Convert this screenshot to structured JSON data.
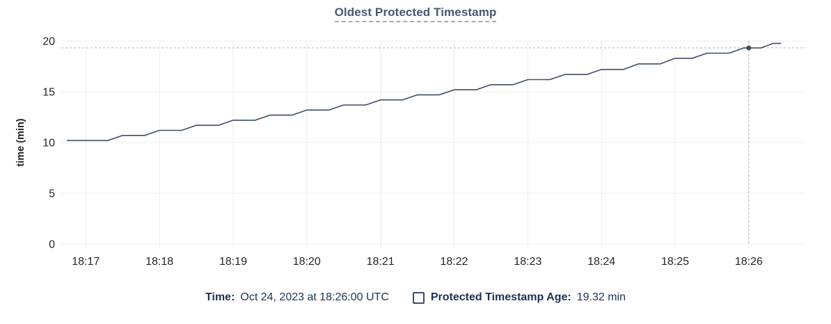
{
  "chart": {
    "title": "Oldest Protected Timestamp",
    "ylabel": "time (min)"
  },
  "legend": {
    "time_label": "Time:",
    "time_value": "Oct 24, 2023 at 18:26:00 UTC",
    "series_label": "Protected Timestamp Age:",
    "series_value": "19.32 min"
  },
  "colors": {
    "series_line": "#3e4c63",
    "highlight_dot": "#3e4c63",
    "crosshair": "#9fb6c3",
    "grid": "#ececec",
    "tick_text": "#242424",
    "axis_title_text": "#242424",
    "title_text": "#475872",
    "title_underline": "#9fabbd",
    "legend_text": "#1b3254",
    "checkbox_border": "#3e5066",
    "background": "#ffffff"
  },
  "chart_data": {
    "type": "line",
    "title": "Oldest Protected Timestamp",
    "xlabel": "",
    "ylabel": "time (min)",
    "ylim": [
      0,
      20
    ],
    "y_ticks": [
      0,
      5,
      10,
      15,
      20
    ],
    "x_ticks": [
      "18:17",
      "18:18",
      "18:19",
      "18:20",
      "18:21",
      "18:22",
      "18:23",
      "18:24",
      "18:25",
      "18:26"
    ],
    "x_domain": [
      "18:16:40",
      "18:26:46"
    ],
    "grid": true,
    "legend_position": "bottom",
    "series": [
      {
        "name": "Protected Timestamp Age",
        "unit": "min",
        "points": [
          [
            "18:16:45",
            10.2
          ],
          [
            "18:17:18",
            10.2
          ],
          [
            "18:17:30",
            10.7
          ],
          [
            "18:17:48",
            10.7
          ],
          [
            "18:18:00",
            11.2
          ],
          [
            "18:18:18",
            11.2
          ],
          [
            "18:18:30",
            11.7
          ],
          [
            "18:18:48",
            11.7
          ],
          [
            "18:19:00",
            12.2
          ],
          [
            "18:19:18",
            12.2
          ],
          [
            "18:19:30",
            12.7
          ],
          [
            "18:19:48",
            12.7
          ],
          [
            "18:20:00",
            13.2
          ],
          [
            "18:20:18",
            13.2
          ],
          [
            "18:20:30",
            13.7
          ],
          [
            "18:20:48",
            13.7
          ],
          [
            "18:21:00",
            14.2
          ],
          [
            "18:21:18",
            14.2
          ],
          [
            "18:21:30",
            14.7
          ],
          [
            "18:21:48",
            14.7
          ],
          [
            "18:22:00",
            15.2
          ],
          [
            "18:22:18",
            15.2
          ],
          [
            "18:22:30",
            15.7
          ],
          [
            "18:22:48",
            15.7
          ],
          [
            "18:23:00",
            16.2
          ],
          [
            "18:23:18",
            16.2
          ],
          [
            "18:23:30",
            16.7
          ],
          [
            "18:23:48",
            16.7
          ],
          [
            "18:24:00",
            17.2
          ],
          [
            "18:24:18",
            17.2
          ],
          [
            "18:24:30",
            17.75
          ],
          [
            "18:24:48",
            17.75
          ],
          [
            "18:25:00",
            18.3
          ],
          [
            "18:25:14",
            18.3
          ],
          [
            "18:25:26",
            18.8
          ],
          [
            "18:25:44",
            18.8
          ],
          [
            "18:25:56",
            19.32
          ],
          [
            "18:26:10",
            19.32
          ],
          [
            "18:26:20",
            19.77
          ],
          [
            "18:26:26",
            19.77
          ]
        ]
      }
    ],
    "highlight": {
      "time": "18:26:00",
      "value": 19.32,
      "time_display": "Oct 24, 2023 at 18:26:00 UTC",
      "value_display": "19.32 min"
    }
  }
}
